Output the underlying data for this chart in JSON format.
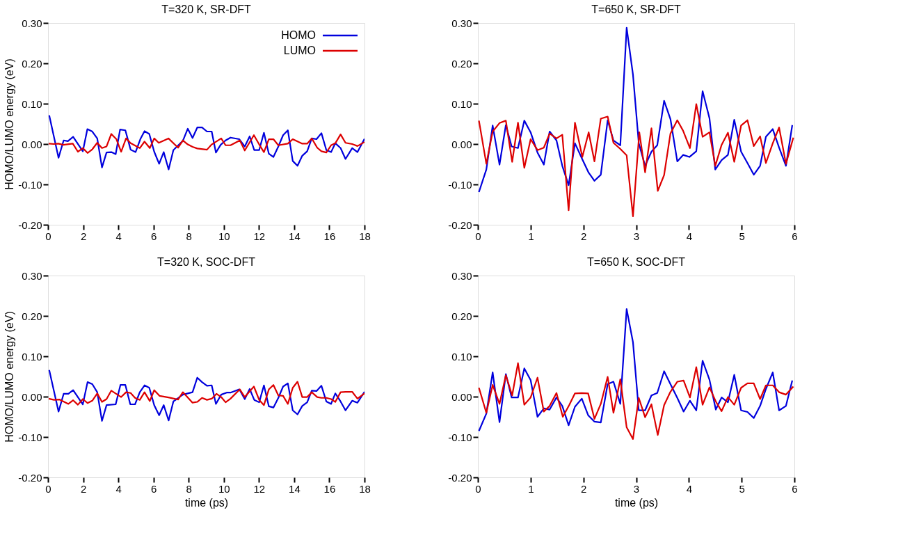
{
  "chart_data": [
    {
      "type": "line",
      "title": "T=320 K, SR-DFT",
      "ylabel": "HOMO/LUMO energy (eV)",
      "xlim": [
        0,
        18
      ],
      "xticks": [
        0,
        2,
        4,
        6,
        8,
        10,
        12,
        14,
        16,
        18
      ],
      "ylim": [
        -0.2,
        0.3
      ],
      "yticks": [
        {
          "value": -0.2,
          "label": "-0.20"
        },
        {
          "value": -0.1,
          "label": "-0.10"
        },
        {
          "value": 0,
          "label": "0.00"
        },
        {
          "value": 0.1,
          "label": "0.10"
        },
        {
          "value": 0.2,
          "label": "0.20"
        },
        {
          "value": 0.3,
          "label": "0.30"
        }
      ],
      "grid": false,
      "legend": "top right",
      "marker": "none",
      "line_style": "solid",
      "series": [
        {
          "name": "HOMO",
          "color": "#0000dd",
          "x": [
            0.07,
            0.6,
            0.89,
            1.13,
            1.43,
            1.98,
            2.24,
            2.52,
            2.8,
            3.07,
            3.33,
            3.6,
            3.85,
            4.1,
            4.4,
            4.7,
            4.98,
            5.25,
            5.49,
            5.76,
            6.04,
            6.32,
            6.58,
            6.86,
            7.13,
            7.67,
            7.95,
            8.22,
            8.49,
            8.76,
            9.04,
            9.31,
            9.55,
            9.82,
            10.1,
            10.38,
            10.88,
            11.19,
            11.47,
            11.73,
            12.01,
            12.28,
            12.56,
            12.82,
            13.1,
            13.37,
            13.64,
            13.92,
            14.19,
            14.46,
            14.74,
            15.0,
            15.27,
            15.55,
            15.83,
            16.1,
            16.34,
            16.64,
            16.92,
            17.3,
            17.6,
            18
          ],
          "values": [
            0.071,
            -0.034,
            0.009,
            0.007,
            0.018,
            -0.018,
            0.037,
            0.031,
            0.014,
            -0.058,
            -0.021,
            -0.02,
            -0.025,
            0.036,
            0.034,
            -0.014,
            -0.02,
            0.012,
            0.032,
            0.025,
            -0.019,
            -0.049,
            -0.02,
            -0.063,
            -0.015,
            0.008,
            0.038,
            0.015,
            0.041,
            0.041,
            0.031,
            0.031,
            -0.021,
            -0.002,
            0.009,
            0.016,
            0.012,
            -0.006,
            0.019,
            -0.015,
            -0.015,
            0.028,
            -0.024,
            -0.032,
            -0.006,
            0.022,
            0.034,
            -0.042,
            -0.054,
            -0.029,
            -0.018,
            0.014,
            0.012,
            0.027,
            -0.015,
            -0.02,
            0.002,
            -0.01,
            -0.037,
            -0.01,
            -0.02,
            0.013
          ]
        },
        {
          "name": "LUMO",
          "color": "#dd0000",
          "x": [
            0.04,
            0.34,
            0.58,
            0.88,
            1.41,
            1.7,
            1.98,
            2.25,
            2.52,
            2.8,
            3.07,
            3.33,
            3.6,
            3.89,
            4.16,
            4.44,
            4.7,
            5.22,
            5.49,
            5.79,
            6.04,
            6.3,
            6.85,
            7.4,
            7.67,
            7.95,
            8.22,
            8.49,
            9.04,
            9.31,
            9.85,
            10.1,
            10.38,
            10.91,
            11.19,
            11.71,
            12.01,
            12.28,
            12.56,
            12.82,
            13.1,
            13.64,
            13.92,
            14.46,
            14.74,
            15.0,
            15.31,
            15.55,
            15.83,
            16.1,
            16.34,
            16.64,
            16.92,
            17.3,
            17.6,
            18
          ],
          "values": [
            0.001,
            0.0,
            0.001,
            -0.002,
            0.001,
            -0.019,
            -0.01,
            -0.022,
            -0.013,
            0.003,
            -0.01,
            -0.006,
            0.025,
            0.012,
            -0.019,
            0.014,
            0.002,
            -0.01,
            0.006,
            -0.01,
            0.014,
            0.003,
            0.014,
            -0.009,
            0.009,
            -0.001,
            -0.007,
            -0.011,
            -0.014,
            -0.001,
            0.014,
            -0.003,
            -0.003,
            0.009,
            -0.016,
            0.022,
            -0.001,
            -0.02,
            0.012,
            0.012,
            -0.003,
            0.001,
            0.012,
            0.001,
            0.001,
            0.014,
            -0.009,
            -0.018,
            -0.021,
            -0.003,
            0.002,
            0.024,
            0.003,
            0.0,
            -0.005,
            0.005
          ]
        }
      ]
    },
    {
      "type": "line",
      "title": "T=650 K, SR-DFT",
      "xlim": [
        0,
        6
      ],
      "xticks": [
        0,
        1,
        2,
        3,
        4,
        5,
        6
      ],
      "ylim": [
        -0.2,
        0.3
      ],
      "yticks": [
        {
          "value": -0.2,
          "label": "-0.20"
        },
        {
          "value": -0.1,
          "label": "-0.10"
        },
        {
          "value": 0,
          "label": "0.00"
        },
        {
          "value": 0.1,
          "label": "0.10"
        },
        {
          "value": 0.2,
          "label": "0.20"
        },
        {
          "value": 0.3,
          "label": "0.30"
        }
      ],
      "grid": false,
      "marker": "none",
      "line_style": "solid",
      "series": [
        {
          "color": "#0000dd",
          "x": [
            0.02,
            0.16,
            0.28,
            0.41,
            0.53,
            0.64,
            0.76,
            0.88,
            1.0,
            1.13,
            1.25,
            1.36,
            1.49,
            1.6,
            1.72,
            1.84,
            1.98,
            2.1,
            2.21,
            2.33,
            2.46,
            2.57,
            2.7,
            2.82,
            2.94,
            3.05,
            3.17,
            3.29,
            3.4,
            3.53,
            3.65,
            3.78,
            3.89,
            4.01,
            4.14,
            4.26,
            4.39,
            4.5,
            4.62,
            4.74,
            4.86,
            4.99,
            5.11,
            5.23,
            5.35,
            5.46,
            5.59,
            5.71,
            5.84,
            5.96
          ],
          "values": [
            -0.119,
            -0.063,
            0.046,
            -0.051,
            0.047,
            -0.006,
            -0.01,
            0.058,
            0.029,
            -0.021,
            -0.051,
            0.031,
            0.009,
            -0.054,
            -0.102,
            0.002,
            -0.038,
            -0.071,
            -0.091,
            -0.076,
            0.059,
            0.009,
            -0.003,
            0.288,
            0.172,
            0.002,
            -0.054,
            -0.019,
            -0.003,
            0.107,
            0.062,
            -0.043,
            -0.027,
            -0.032,
            -0.018,
            0.131,
            0.064,
            -0.063,
            -0.04,
            -0.027,
            0.06,
            -0.019,
            -0.047,
            -0.076,
            -0.054,
            0.018,
            0.037,
            -0.009,
            -0.054,
            0.047
          ]
        },
        {
          "color": "#dd0000",
          "x": [
            0.02,
            0.16,
            0.28,
            0.41,
            0.53,
            0.65,
            0.76,
            0.88,
            1.0,
            1.13,
            1.25,
            1.36,
            1.49,
            1.6,
            1.72,
            1.84,
            1.98,
            2.1,
            2.21,
            2.33,
            2.46,
            2.57,
            2.7,
            2.82,
            2.94,
            3.06,
            3.17,
            3.29,
            3.41,
            3.53,
            3.65,
            3.78,
            3.89,
            4.02,
            4.14,
            4.26,
            4.39,
            4.5,
            4.62,
            4.74,
            4.86,
            4.99,
            5.11,
            5.23,
            5.35,
            5.46,
            5.59,
            5.71,
            5.84,
            5.98
          ],
          "values": [
            0.058,
            -0.049,
            0.031,
            0.052,
            0.058,
            -0.044,
            0.053,
            -0.059,
            0.012,
            -0.015,
            -0.009,
            0.026,
            0.014,
            0.023,
            -0.164,
            0.053,
            -0.032,
            0.029,
            -0.043,
            0.063,
            0.068,
            0.003,
            -0.012,
            -0.028,
            -0.179,
            0.029,
            -0.07,
            0.039,
            -0.116,
            -0.077,
            0.026,
            0.059,
            0.033,
            -0.01,
            0.099,
            0.018,
            0.029,
            -0.054,
            -0.002,
            0.028,
            -0.044,
            0.046,
            0.059,
            -0.005,
            0.019,
            -0.047,
            0.002,
            0.041,
            -0.049,
            0.016
          ]
        }
      ]
    },
    {
      "type": "line",
      "title": "T=320 K, SOC-DFT",
      "xlabel": "time (ps)",
      "ylabel": "HOMO/LUMO energy (eV)",
      "xlim": [
        0,
        18
      ],
      "xticks": [
        0,
        2,
        4,
        6,
        8,
        10,
        12,
        14,
        16,
        18
      ],
      "ylim": [
        -0.2,
        0.3
      ],
      "yticks": [
        {
          "value": -0.2,
          "label": "-0.20"
        },
        {
          "value": -0.1,
          "label": "-0.10"
        },
        {
          "value": 0,
          "label": "0.00"
        },
        {
          "value": 0.1,
          "label": "0.10"
        },
        {
          "value": 0.2,
          "label": "0.20"
        },
        {
          "value": 0.3,
          "label": "0.30"
        }
      ],
      "grid": false,
      "marker": "none",
      "line_style": "solid",
      "series": [
        {
          "color": "#0000dd",
          "x": [
            0.07,
            0.6,
            0.89,
            1.16,
            1.43,
            1.98,
            2.25,
            2.52,
            2.8,
            3.07,
            3.33,
            3.85,
            4.12,
            4.4,
            4.68,
            4.95,
            5.22,
            5.49,
            5.76,
            6.04,
            6.32,
            6.58,
            6.86,
            7.13,
            7.67,
            8.22,
            8.49,
            8.76,
            9.04,
            9.31,
            9.55,
            9.85,
            10.16,
            10.38,
            10.88,
            11.19,
            11.47,
            11.73,
            12.01,
            12.28,
            12.56,
            12.82,
            13.1,
            13.37,
            13.64,
            13.92,
            14.19,
            14.46,
            14.74,
            15.0,
            15.27,
            15.55,
            15.83,
            16.1,
            16.34,
            16.64,
            16.92,
            17.3,
            17.6,
            18
          ],
          "values": [
            0.066,
            -0.037,
            0.007,
            0.007,
            0.016,
            -0.019,
            0.036,
            0.031,
            0.011,
            -0.06,
            -0.021,
            -0.019,
            0.029,
            0.029,
            -0.019,
            -0.019,
            0.011,
            0.028,
            0.022,
            -0.021,
            -0.046,
            -0.021,
            -0.059,
            -0.012,
            0.005,
            0.011,
            0.047,
            0.036,
            0.027,
            0.028,
            -0.018,
            0.005,
            0.01,
            0.01,
            0.018,
            -0.006,
            0.019,
            -0.008,
            -0.014,
            0.028,
            -0.024,
            -0.027,
            -0.003,
            0.025,
            0.033,
            -0.034,
            -0.044,
            -0.023,
            -0.014,
            0.015,
            0.014,
            0.027,
            -0.012,
            -0.018,
            0.008,
            -0.012,
            -0.034,
            -0.01,
            -0.015,
            0.012
          ]
        },
        {
          "color": "#dd0000",
          "x": [
            0.04,
            0.34,
            0.64,
            1.16,
            1.43,
            1.7,
            1.98,
            2.25,
            2.52,
            2.8,
            3.07,
            3.33,
            3.6,
            4.16,
            4.44,
            4.7,
            4.95,
            5.22,
            5.49,
            5.79,
            6.04,
            6.34,
            6.85,
            7.4,
            7.67,
            8.22,
            8.49,
            8.76,
            9.04,
            9.31,
            9.58,
            9.85,
            10.1,
            10.38,
            10.91,
            11.19,
            11.71,
            12.01,
            12.28,
            12.56,
            12.82,
            13.1,
            13.37,
            13.64,
            13.92,
            14.19,
            14.46,
            14.74,
            15.0,
            15.31,
            15.55,
            15.83,
            16.1,
            16.34,
            16.64,
            16.92,
            17.3,
            17.6,
            18
          ],
          "values": [
            -0.005,
            -0.008,
            -0.007,
            -0.018,
            -0.009,
            -0.02,
            -0.006,
            -0.016,
            -0.01,
            0.008,
            -0.013,
            -0.006,
            0.015,
            -0.001,
            0.011,
            0.009,
            -0.003,
            -0.008,
            0.011,
            -0.011,
            0.016,
            0.002,
            -0.002,
            -0.007,
            0.011,
            -0.015,
            -0.013,
            -0.003,
            -0.008,
            -0.005,
            0.007,
            -0.001,
            -0.014,
            -0.005,
            0.018,
            -0.001,
            0.025,
            -0.008,
            -0.021,
            0.018,
            0.029,
            0.003,
            0.002,
            -0.018,
            0.022,
            0.037,
            -0.001,
            -0.001,
            0.011,
            -0.001,
            -0.003,
            -0.003,
            -0.006,
            -0.013,
            0.011,
            0.012,
            0.012,
            -0.005,
            0.008
          ]
        }
      ]
    },
    {
      "type": "line",
      "title": "T=650 K, SOC-DFT",
      "xlabel": "time (ps)",
      "xlim": [
        0,
        6
      ],
      "xticks": [
        0,
        1,
        2,
        3,
        4,
        5,
        6
      ],
      "ylim": [
        -0.2,
        0.3
      ],
      "yticks": [
        {
          "value": -0.2,
          "label": "-0.20"
        },
        {
          "value": -0.1,
          "label": "-0.10"
        },
        {
          "value": 0,
          "label": "0.00"
        },
        {
          "value": 0.1,
          "label": "0.10"
        },
        {
          "value": 0.2,
          "label": "0.20"
        },
        {
          "value": 0.3,
          "label": "0.30"
        }
      ],
      "grid": false,
      "marker": "none",
      "line_style": "solid",
      "series": [
        {
          "color": "#0000dd",
          "x": [
            0.02,
            0.16,
            0.28,
            0.41,
            0.53,
            0.64,
            0.76,
            0.88,
            1.0,
            1.13,
            1.25,
            1.36,
            1.49,
            1.6,
            1.72,
            1.84,
            1.97,
            2.09,
            2.21,
            2.33,
            2.46,
            2.57,
            2.7,
            2.82,
            2.94,
            3.05,
            3.17,
            3.29,
            3.4,
            3.53,
            3.65,
            3.78,
            3.9,
            4.02,
            4.14,
            4.26,
            4.39,
            4.51,
            4.62,
            4.74,
            4.86,
            4.99,
            5.11,
            5.23,
            5.35,
            5.46,
            5.59,
            5.71,
            5.84,
            5.96
          ],
          "values": [
            -0.085,
            -0.042,
            0.06,
            -0.063,
            0.056,
            -0.002,
            -0.002,
            0.07,
            0.041,
            -0.05,
            -0.029,
            -0.032,
            -0.002,
            -0.023,
            -0.071,
            -0.025,
            -0.005,
            -0.046,
            -0.062,
            -0.064,
            0.031,
            0.037,
            -0.018,
            0.217,
            0.135,
            -0.034,
            -0.034,
            0.003,
            0.009,
            0.063,
            0.031,
            -0.003,
            -0.037,
            -0.01,
            -0.034,
            0.089,
            0.042,
            -0.032,
            -0.002,
            -0.014,
            0.054,
            -0.034,
            -0.038,
            -0.053,
            -0.023,
            0.019,
            0.06,
            -0.034,
            -0.023,
            0.04
          ]
        },
        {
          "color": "#dd0000",
          "x": [
            0.02,
            0.16,
            0.28,
            0.41,
            0.53,
            0.65,
            0.76,
            0.88,
            1.0,
            1.13,
            1.25,
            1.36,
            1.49,
            1.61,
            1.73,
            1.84,
            1.97,
            2.09,
            2.21,
            2.33,
            2.46,
            2.57,
            2.7,
            2.82,
            2.94,
            3.05,
            3.17,
            3.29,
            3.41,
            3.53,
            3.65,
            3.78,
            3.9,
            4.02,
            4.14,
            4.26,
            4.39,
            4.51,
            4.62,
            4.74,
            4.86,
            4.99,
            5.11,
            5.23,
            5.35,
            5.46,
            5.59,
            5.71,
            5.84,
            5.98
          ],
          "values": [
            0.022,
            -0.04,
            0.029,
            -0.018,
            0.053,
            0.003,
            0.083,
            -0.02,
            -0.002,
            0.047,
            -0.037,
            -0.023,
            0.009,
            -0.05,
            -0.021,
            0.008,
            0.009,
            0.008,
            -0.055,
            -0.018,
            0.049,
            -0.04,
            0.043,
            -0.076,
            -0.105,
            -0.003,
            -0.051,
            -0.019,
            -0.095,
            -0.021,
            0.012,
            0.037,
            0.04,
            -0.002,
            0.073,
            -0.02,
            0.023,
            -0.012,
            -0.036,
            -0.001,
            -0.02,
            0.022,
            0.033,
            0.033,
            -0.006,
            0.028,
            0.028,
            0.011,
            0.005,
            0.025
          ]
        }
      ]
    }
  ]
}
